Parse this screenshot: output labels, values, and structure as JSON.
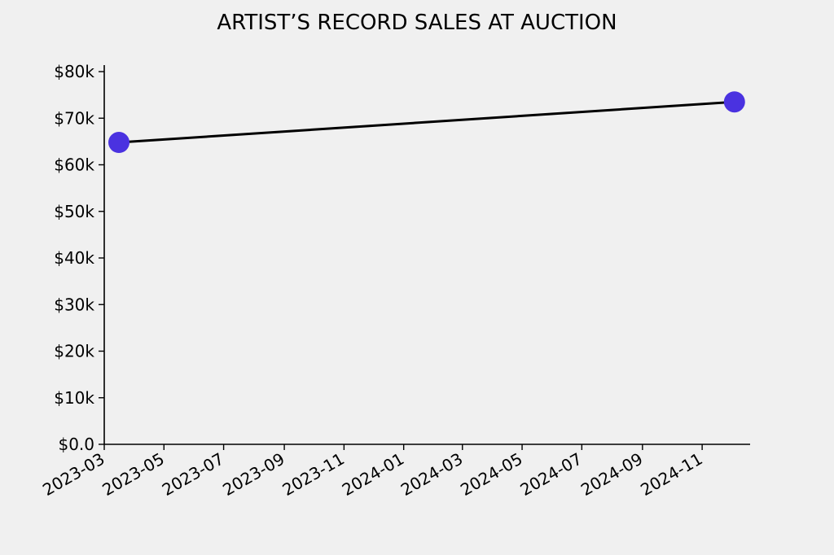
{
  "chart_data": {
    "type": "line",
    "title": "ARTIST’S RECORD SALES AT AUCTION",
    "xlabel": "",
    "ylabel": "",
    "x_ticks": [
      "2023-03",
      "2023-05",
      "2023-07",
      "2023-09",
      "2023-11",
      "2024-01",
      "2024-03",
      "2024-05",
      "2024-07",
      "2024-09",
      "2024-11"
    ],
    "y_ticks": [
      "$0.0",
      "$10k",
      "$20k",
      "$30k",
      "$40k",
      "$50k",
      "$60k",
      "$70k",
      "$80k"
    ],
    "ylim": [
      0,
      80000
    ],
    "xlim": [
      "2023-03-01",
      "2024-12-20"
    ],
    "series": [
      {
        "x": [
          "2023-03-16",
          "2024-12-04"
        ],
        "values": [
          64800,
          73500
        ]
      }
    ],
    "line_color": "#000000",
    "marker_color": "#4a32e0",
    "grid": false,
    "legend": "none"
  }
}
